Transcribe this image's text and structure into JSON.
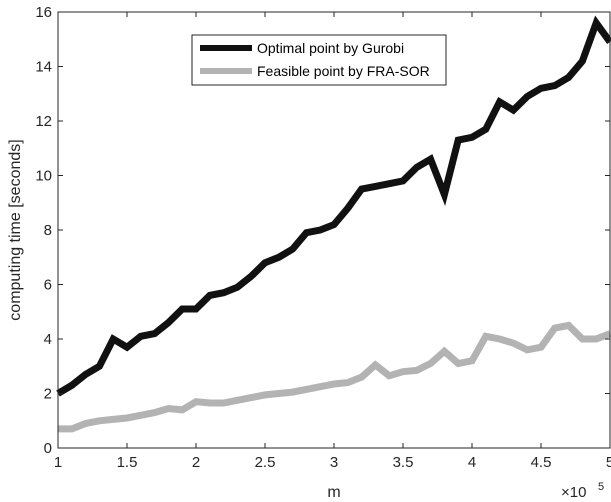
{
  "chart_data": {
    "type": "line",
    "title": "",
    "xlabel": "m",
    "ylabel": "computing time [seconds]",
    "x_multiplier": {
      "base": "×10",
      "exponent": "5"
    },
    "xlim": [
      1,
      5
    ],
    "ylim": [
      0,
      16
    ],
    "x_ticks": [
      1,
      1.5,
      2,
      2.5,
      3,
      3.5,
      4,
      4.5,
      5
    ],
    "x_tick_labels": [
      "1",
      "1.5",
      "2",
      "2.5",
      "3",
      "3.5",
      "4",
      "4.5",
      "5"
    ],
    "y_ticks": [
      0,
      2,
      4,
      6,
      8,
      10,
      12,
      14,
      16
    ],
    "y_tick_labels": [
      "0",
      "2",
      "4",
      "6",
      "8",
      "10",
      "12",
      "14",
      "16"
    ],
    "grid": false,
    "legend_position": "top-center",
    "x": [
      1.0,
      1.1,
      1.2,
      1.3,
      1.4,
      1.5,
      1.6,
      1.7,
      1.8,
      1.9,
      2.0,
      2.1,
      2.2,
      2.3,
      2.4,
      2.5,
      2.6,
      2.7,
      2.8,
      2.9,
      3.0,
      3.1,
      3.2,
      3.3,
      3.4,
      3.5,
      3.6,
      3.7,
      3.8,
      3.9,
      4.0,
      4.1,
      4.2,
      4.3,
      4.4,
      4.5,
      4.6,
      4.7,
      4.8,
      4.9,
      5.0
    ],
    "series": [
      {
        "name": "Optimal point by Gurobi",
        "color": "#111111",
        "values": [
          2.0,
          2.3,
          2.7,
          3.0,
          4.0,
          3.7,
          4.1,
          4.2,
          4.6,
          5.1,
          5.1,
          5.6,
          5.7,
          5.9,
          6.3,
          6.8,
          7.0,
          7.3,
          7.9,
          8.0,
          8.2,
          8.8,
          9.5,
          9.6,
          9.7,
          9.8,
          10.3,
          10.6,
          9.3,
          11.3,
          11.4,
          11.7,
          12.7,
          12.4,
          12.9,
          13.2,
          13.3,
          13.6,
          14.2,
          15.6,
          14.9
        ]
      },
      {
        "name": "Feasible point by FRA-SOR",
        "color": "#b3b3b3",
        "values": [
          0.7,
          0.7,
          0.9,
          1.0,
          1.05,
          1.1,
          1.2,
          1.3,
          1.45,
          1.4,
          1.7,
          1.65,
          1.65,
          1.75,
          1.85,
          1.95,
          2.0,
          2.05,
          2.15,
          2.25,
          2.35,
          2.4,
          2.6,
          3.05,
          2.65,
          2.8,
          2.85,
          3.1,
          3.55,
          3.1,
          3.2,
          4.1,
          4.0,
          3.85,
          3.6,
          3.7,
          4.4,
          4.5,
          4.0,
          4.0,
          4.2
        ]
      }
    ]
  }
}
